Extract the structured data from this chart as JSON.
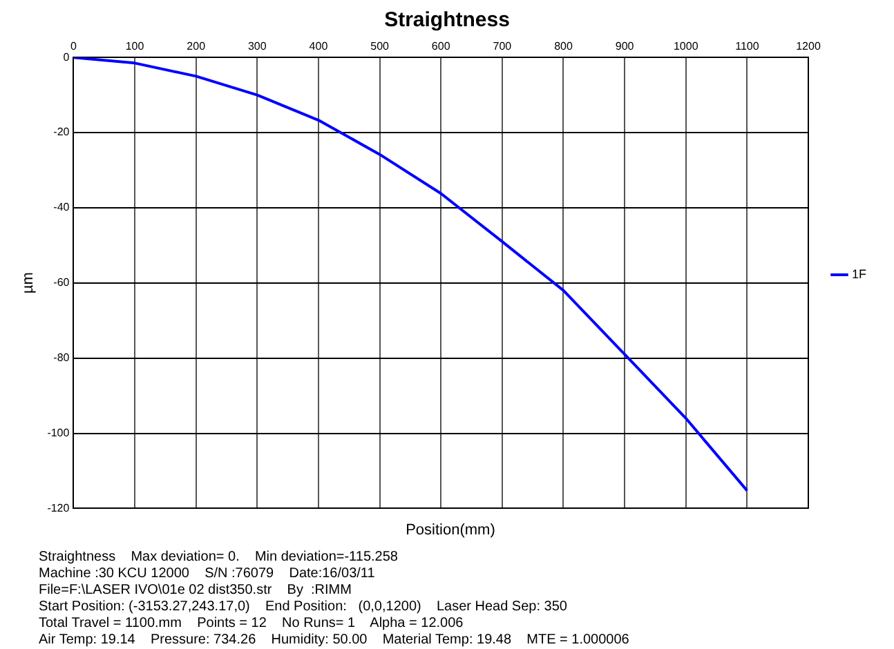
{
  "chart_data": {
    "type": "line",
    "title": "Straightness",
    "xlabel": "Position(mm)",
    "ylabel": "µm",
    "x": [
      0,
      100,
      200,
      300,
      400,
      500,
      600,
      700,
      800,
      900,
      1000,
      1100
    ],
    "series": [
      {
        "name": "1F",
        "color": "#0000ff",
        "values": [
          0,
          -1.5,
          -5,
          -10,
          -16.7,
          -25.8,
          -36.2,
          -49,
          -62,
          -79,
          -96,
          -115.258
        ]
      }
    ],
    "xlim": [
      0,
      1200
    ],
    "xticks": [
      0,
      100,
      200,
      300,
      400,
      500,
      600,
      700,
      800,
      900,
      1000,
      1100,
      1200
    ],
    "ylim": [
      -120,
      0
    ],
    "yticks": [
      -120,
      -100,
      -80,
      -60,
      -40,
      -20,
      0
    ],
    "grid": true,
    "legend": "right",
    "marker": "none",
    "line_style": "solid",
    "annotations": [
      "Straightness    Max deviation= 0.    Min deviation=-115.258",
      "Machine :30 KCU 12000    S/N :76079    Date:16/03/11",
      "File=F:\\LASER IVO\\01e 02 dist350.str    By  :RIMM",
      "Start Position: (-3153.27,243.17,0)    End Position:   (0,0,1200)    Laser Head Sep: 350",
      "Total Travel = 1100.mm    Points = 12    No Runs= 1    Alpha = 12.006",
      "Air Temp: 19.14    Pressure: 734.26    Humidity: 50.00    Material Temp: 19.48    MTE = 1.000006"
    ]
  }
}
